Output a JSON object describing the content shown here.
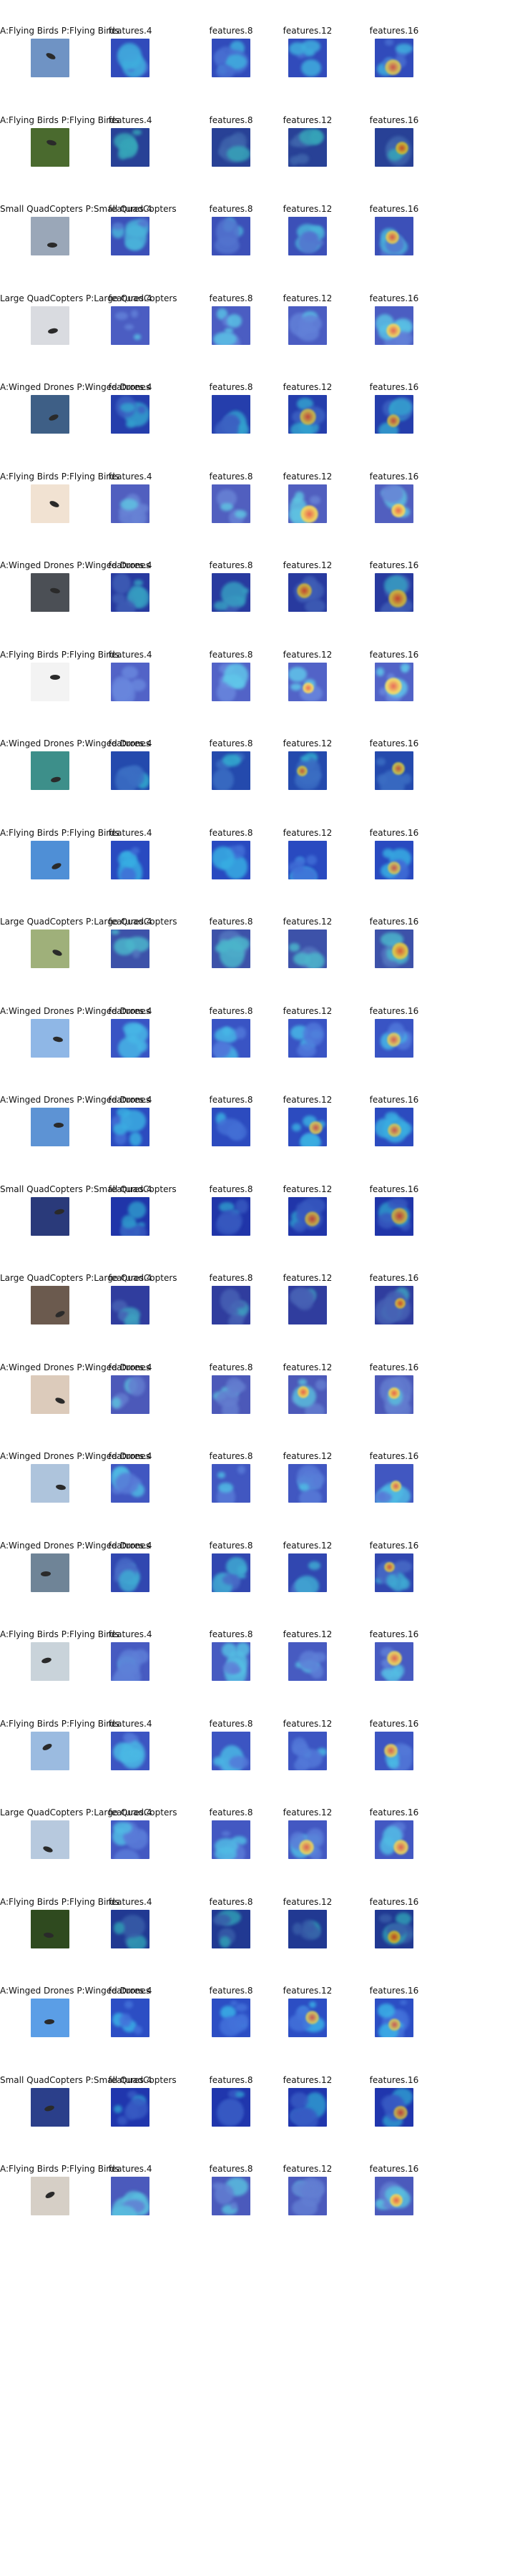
{
  "colors": {
    "photo_sky": "#6f93c4",
    "heat_low": "#1c33b8",
    "heat_mid": "#2fb7e6",
    "heat_high": "#e53a25",
    "heat_warm": "#f2d33a",
    "background": "#ffffff"
  },
  "layer_labels": [
    "features.4",
    "features.8",
    "features.12",
    "features.16"
  ],
  "rows": [
    {
      "label": "A:Flying Birds P:Flying Birds"
    },
    {
      "label": "A:Flying Birds P:Flying Birds"
    },
    {
      "label": "Small QuadCopters P:Small QuadCopters"
    },
    {
      "label": "Large QuadCopters P:Large QuadCopters"
    },
    {
      "label": "A:Winged Drones P:Winged Drones"
    },
    {
      "label": "A:Flying Birds P:Flying Birds"
    },
    {
      "label": "A:Winged Drones P:Winged Drones"
    },
    {
      "label": "A:Flying Birds P:Flying Birds"
    },
    {
      "label": "A:Winged Drones P:Winged Drones"
    },
    {
      "label": "A:Flying Birds P:Flying Birds"
    },
    {
      "label": "Large QuadCopters P:Large QuadCopters"
    },
    {
      "label": "A:Winged Drones P:Winged Drones"
    },
    {
      "label": "A:Winged Drones P:Winged Drones"
    },
    {
      "label": "Small QuadCopters P:Small QuadCopters"
    },
    {
      "label": "Large QuadCopters P:Large QuadCopters"
    },
    {
      "label": "A:Winged Drones P:Winged Drones"
    },
    {
      "label": "A:Winged Drones P:Winged Drones"
    },
    {
      "label": "A:Winged Drones P:Winged Drones"
    },
    {
      "label": "A:Flying Birds P:Flying Birds"
    },
    {
      "label": "A:Flying Birds P:Flying Birds"
    },
    {
      "label": "Large QuadCopters P:Large QuadCopters"
    },
    {
      "label": "A:Flying Birds P:Flying Birds"
    },
    {
      "label": "A:Winged Drones P:Winged Drones"
    },
    {
      "label": "Small QuadCopters P:Small QuadCopters"
    },
    {
      "label": "A:Flying Birds P:Flying Birds"
    }
  ],
  "thumb_palette": [
    "#6f93c4",
    "#4a6a2e",
    "#9aa7b8",
    "#d9dbe0",
    "#3e5f86",
    "#f1e2d2",
    "#4b4f55",
    "#f3f3f3",
    "#3d8f8a",
    "#4f8fd6",
    "#9fb07a",
    "#8fb7e6",
    "#5d93d4",
    "#2a3a7a",
    "#6b5a4e",
    "#dccbbb",
    "#aec4dc",
    "#6f8497",
    "#c9d3da",
    "#9bbbe0",
    "#b7c9de",
    "#2f4a1f",
    "#5b9ee6",
    "#2b3f8a",
    "#d6cfc6"
  ]
}
